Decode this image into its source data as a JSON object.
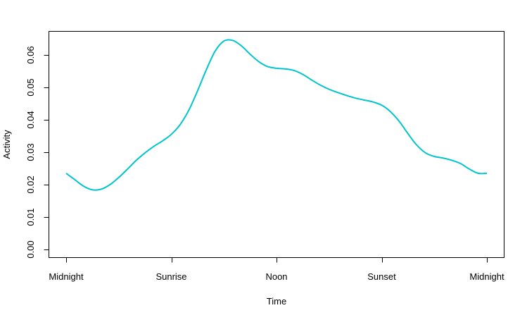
{
  "chart_data": {
    "type": "line",
    "title": "",
    "xlabel": "Time",
    "ylabel": "Activity",
    "x_ticks": [
      {
        "value": 0,
        "label": "Midnight"
      },
      {
        "value": 6,
        "label": "Sunrise"
      },
      {
        "value": 12,
        "label": "Noon"
      },
      {
        "value": 18,
        "label": "Sunset"
      },
      {
        "value": 24,
        "label": "Midnight"
      }
    ],
    "xlim": [
      0,
      24
    ],
    "y_ticks": [
      "0.00",
      "0.01",
      "0.02",
      "0.03",
      "0.04",
      "0.05",
      "0.06"
    ],
    "ylim": [
      0,
      0.06
    ],
    "grid": false,
    "line_color": "#00c5cd",
    "series": [
      {
        "x": [
          0,
          0.5,
          1,
          1.5,
          2,
          2.5,
          3,
          3.5,
          4,
          4.5,
          5,
          5.5,
          6,
          6.5,
          7,
          7.5,
          8,
          8.5,
          9,
          9.5,
          10,
          10.5,
          11,
          11.5,
          12,
          12.5,
          13,
          13.5,
          14,
          14.5,
          15,
          15.5,
          16,
          16.5,
          17,
          17.5,
          18,
          18.5,
          19,
          19.5,
          20,
          20.5,
          21,
          21.5,
          22,
          22.5,
          23,
          23.5,
          24
        ],
        "y": [
          0.0235,
          0.0215,
          0.0195,
          0.0184,
          0.0186,
          0.02,
          0.0222,
          0.0248,
          0.0275,
          0.0298,
          0.0318,
          0.0335,
          0.0355,
          0.0385,
          0.043,
          0.049,
          0.0555,
          0.0612,
          0.0643,
          0.0645,
          0.0628,
          0.0602,
          0.0579,
          0.0564,
          0.0559,
          0.0557,
          0.0552,
          0.054,
          0.0523,
          0.0507,
          0.0494,
          0.0484,
          0.0475,
          0.0467,
          0.0461,
          0.0455,
          0.0445,
          0.0425,
          0.0395,
          0.0357,
          0.0322,
          0.0298,
          0.0287,
          0.0282,
          0.0275,
          0.0265,
          0.0248,
          0.0235,
          0.0235
        ]
      }
    ]
  }
}
